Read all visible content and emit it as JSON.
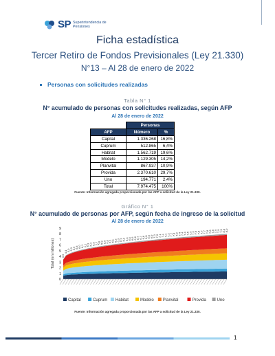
{
  "logo": {
    "sp": "SP",
    "text": "Superintendencia de Pensiones"
  },
  "header": {
    "title": "Ficha estadística",
    "subtitle": "Tercer Retiro de Fondos Previsionales (Ley 21.330)",
    "subtitle2": "N°13 – Al 28 de enero de 2022"
  },
  "section": {
    "label": "Personas con solicitudes realizadas"
  },
  "table1": {
    "caption": "Tabla N° 1",
    "title": "N° acumulado de personas con solicitudes realizadas, según AFP",
    "date": "Al 28 de enero de 2022",
    "group_header": "Personas",
    "headers": [
      "AFP",
      "Número",
      "%"
    ],
    "rows": [
      {
        "afp": "Capital",
        "numero": "1.336.268",
        "pct": "16,8%"
      },
      {
        "afp": "Cuprum",
        "numero": "512.865",
        "pct": "6,4%"
      },
      {
        "afp": "Habitat",
        "numero": "1.562.719",
        "pct": "19,6%"
      },
      {
        "afp": "Modelo",
        "numero": "1.129.305",
        "pct": "14,2%"
      },
      {
        "afp": "Planvital",
        "numero": "867.937",
        "pct": "10,9%"
      },
      {
        "afp": "Provida",
        "numero": "2.370.610",
        "pct": "29,7%"
      },
      {
        "afp": "Uno",
        "numero": "194.771",
        "pct": "2,4%"
      },
      {
        "afp": "Total",
        "numero": "7.974.475",
        "pct": "100%"
      }
    ],
    "source": "Fuente: Información agregada proporcionada por las AFP a solicitud de la Ley 21.330."
  },
  "chart1": {
    "caption": "Gráfico N° 1",
    "title": "N° acumulado de personas por AFP, según fecha de ingreso de la solicitud",
    "date": "Al 28 de enero de 2022",
    "source": "Fuente: Información agregada proporcionada por las AFP a solicitud de la Ley 21.330."
  },
  "chart_data": {
    "type": "area",
    "stacked": true,
    "ylabel": "Total (en millones)",
    "ylim": [
      0,
      9
    ],
    "yticks": [
      0,
      1,
      2,
      3,
      4,
      5,
      6,
      7,
      8,
      9
    ],
    "grid": false,
    "legend_position": "bottom",
    "series": [
      {
        "name": "Capital",
        "color": "#1f3b63",
        "final": 1.34
      },
      {
        "name": "Cuprum",
        "color": "#3aa3d9",
        "final": 0.51
      },
      {
        "name": "Habitat",
        "color": "#9fd4f0",
        "final": 1.56
      },
      {
        "name": "Modelo",
        "color": "#f5c400",
        "final": 1.13
      },
      {
        "name": "Planvital",
        "color": "#f07d1e",
        "final": 0.87
      },
      {
        "name": "Provida",
        "color": "#e01b1b",
        "final": 2.37
      },
      {
        "name": "Uno",
        "color": "#9c9c9c",
        "final": 0.19
      }
    ],
    "totals_labels_start": [
      "3,5",
      "4,4",
      "5,0",
      "5,3",
      "5,6",
      "5,8",
      "6,0",
      "6,1",
      "6,2",
      "6,3",
      "6,4",
      "6,5"
    ],
    "totals_labels_end": "8,0",
    "total_start": 3.5,
    "total_end": 8.0,
    "num_points": 60
  },
  "footer": {
    "page": "1",
    "colors": [
      "#1f3b63",
      "#3a78c4",
      "#6aa6e0",
      "#9fd4f0"
    ]
  }
}
